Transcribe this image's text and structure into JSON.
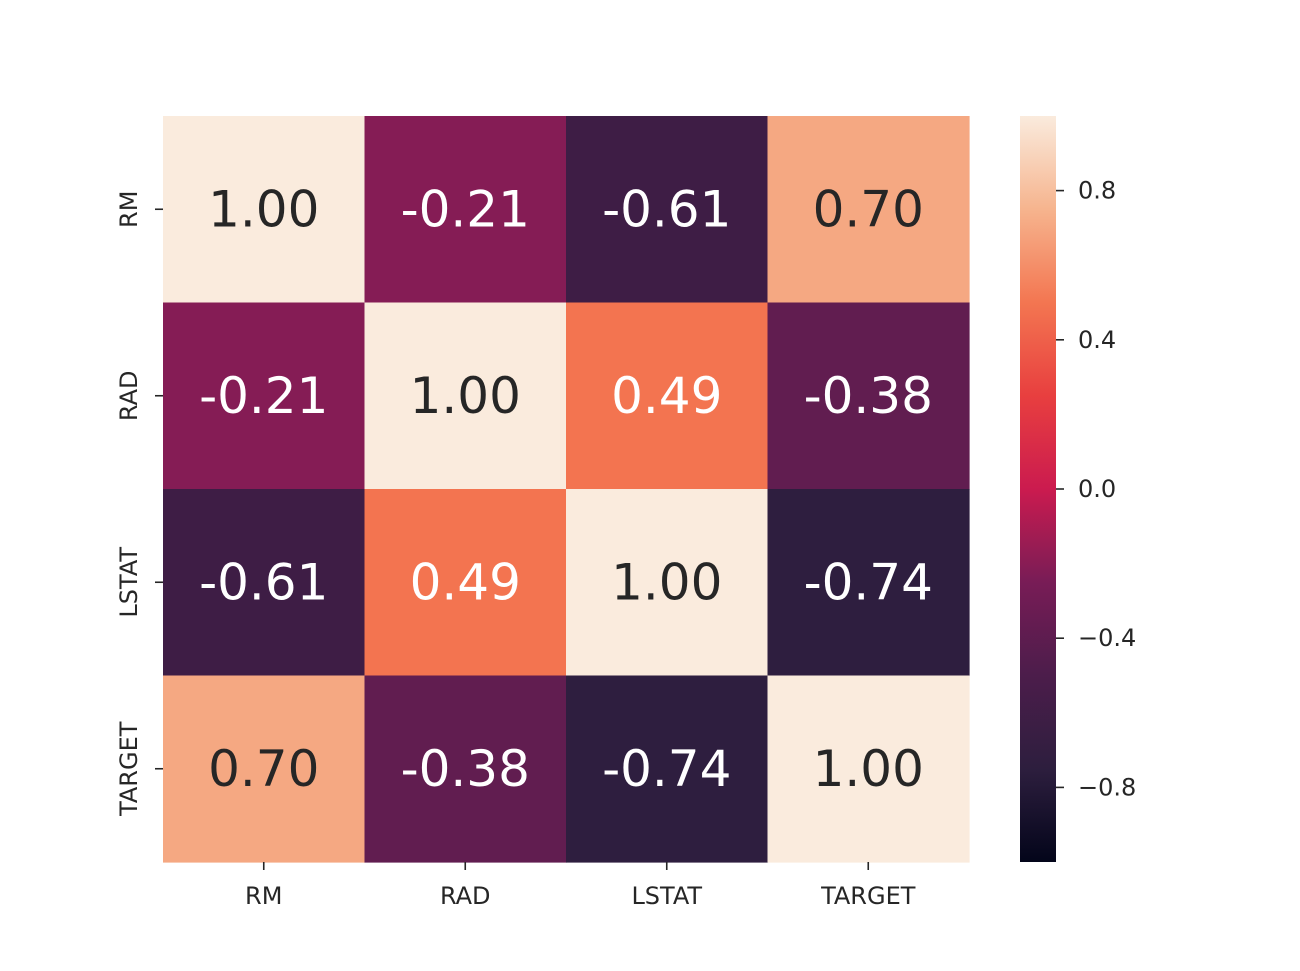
{
  "chart_data": {
    "type": "heatmap",
    "title": "",
    "xlabel": "",
    "ylabel": "",
    "x_labels": [
      "RM",
      "RAD",
      "LSTAT",
      "TARGET"
    ],
    "y_labels": [
      "RM",
      "RAD",
      "LSTAT",
      "TARGET"
    ],
    "values": [
      [
        1.0,
        -0.21,
        -0.61,
        0.7
      ],
      [
        -0.21,
        1.0,
        0.49,
        -0.38
      ],
      [
        -0.61,
        0.49,
        1.0,
        -0.74
      ],
      [
        0.7,
        -0.38,
        -0.74,
        1.0
      ]
    ],
    "annotations": [
      [
        "1.00",
        "-0.21",
        "-0.61",
        "0.70"
      ],
      [
        "-0.21",
        "1.00",
        "0.49",
        "-0.38"
      ],
      [
        "-0.61",
        "0.49",
        "1.00",
        "-0.74"
      ],
      [
        "0.70",
        "-0.38",
        "-0.74",
        "1.00"
      ]
    ],
    "colormap": "rocket",
    "vmin": -1.0,
    "vmax": 1.0,
    "colorbar": {
      "ticks": [
        0.8,
        0.4,
        0.0,
        -0.4,
        -0.8
      ],
      "tick_labels": [
        "0.8",
        "0.4",
        "0.0",
        "−0.4",
        "−0.8"
      ],
      "placement": "right"
    }
  }
}
